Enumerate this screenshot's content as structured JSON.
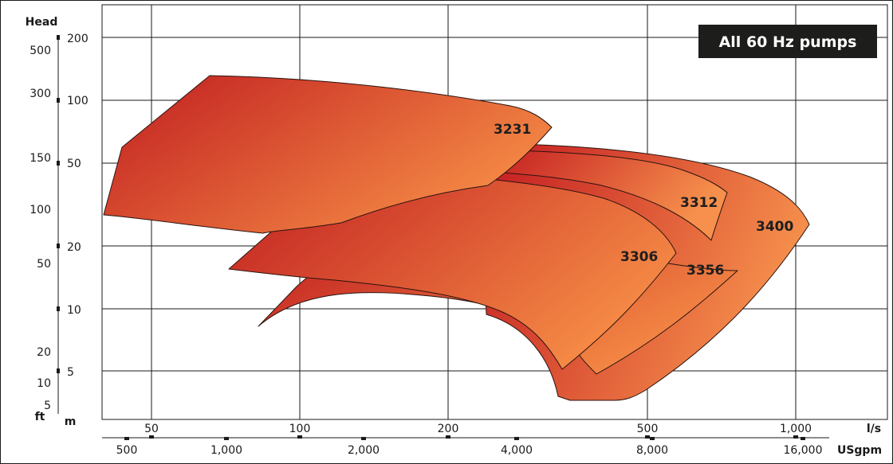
{
  "chart_data": {
    "type": "area",
    "title": "All 60 Hz pumps",
    "ylabel": "Head",
    "y_units": {
      "left": "ft",
      "right": "m"
    },
    "x_units": {
      "top": "l/s",
      "bottom": "USgpm"
    },
    "x_scale": "log",
    "y_scale": "log",
    "grid": true,
    "x_ticks_ls": [
      "50",
      "100",
      "200",
      "500",
      "1,000"
    ],
    "x_ticks_usgpm": [
      "500",
      "1,000",
      "2,000",
      "4,000",
      "8,000",
      "16,000"
    ],
    "y_ticks_m": [
      "200",
      "100",
      "50",
      "20",
      "10",
      "5"
    ],
    "y_ticks_ft": [
      "500",
      "300",
      "150",
      "100",
      "50",
      "20",
      "10",
      "5"
    ],
    "series": [
      {
        "name": "3400"
      },
      {
        "name": "3312"
      },
      {
        "name": "3356"
      },
      {
        "name": "3306"
      },
      {
        "name": "3231"
      }
    ]
  }
}
